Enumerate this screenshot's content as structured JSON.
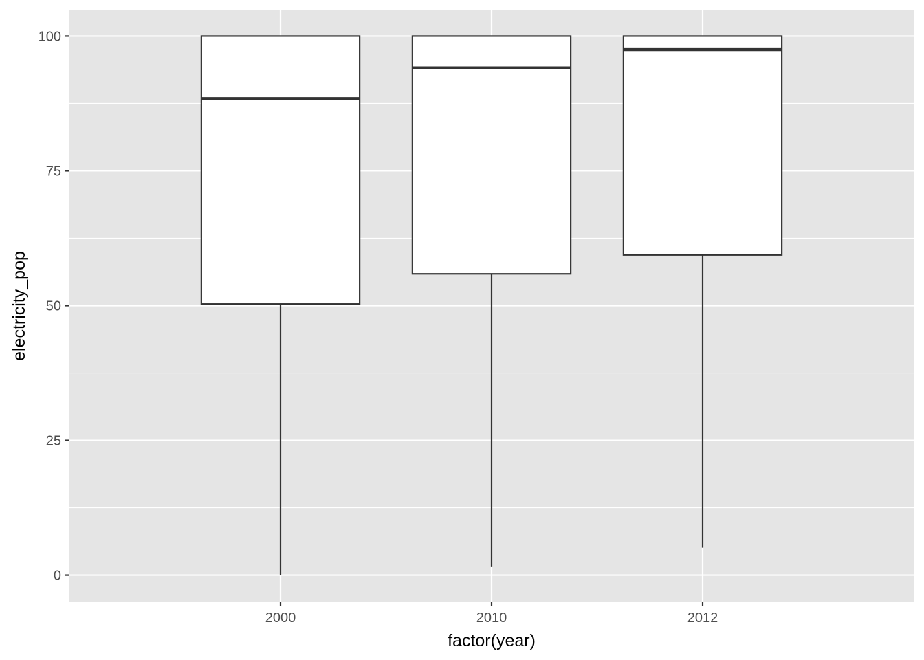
{
  "chart_data": {
    "type": "boxplot",
    "title": "",
    "xlabel": "factor(year)",
    "ylabel": "electricity_pop",
    "categories": [
      "2000",
      "2010",
      "2012"
    ],
    "boxes": [
      {
        "category": "2000",
        "whisker_low": 0.0,
        "q1": 50.3,
        "median": 88.4,
        "q3": 100.0,
        "whisker_high": 100.0
      },
      {
        "category": "2010",
        "whisker_low": 1.5,
        "q1": 55.9,
        "median": 94.1,
        "q3": 100.0,
        "whisker_high": 100.0
      },
      {
        "category": "2012",
        "whisker_low": 5.1,
        "q1": 59.4,
        "median": 97.5,
        "q3": 100.0,
        "whisker_high": 100.0
      }
    ],
    "y_ticks": [
      0,
      25,
      50,
      75,
      100
    ],
    "ylim": [
      -4.9,
      104.9
    ],
    "grid": true,
    "legend": "none",
    "colors": {
      "panel_background": "#e5e5e5",
      "grid": "#ffffff",
      "box_fill": "#ffffff",
      "box_stroke": "#333333",
      "tick_mark": "#333333"
    }
  }
}
